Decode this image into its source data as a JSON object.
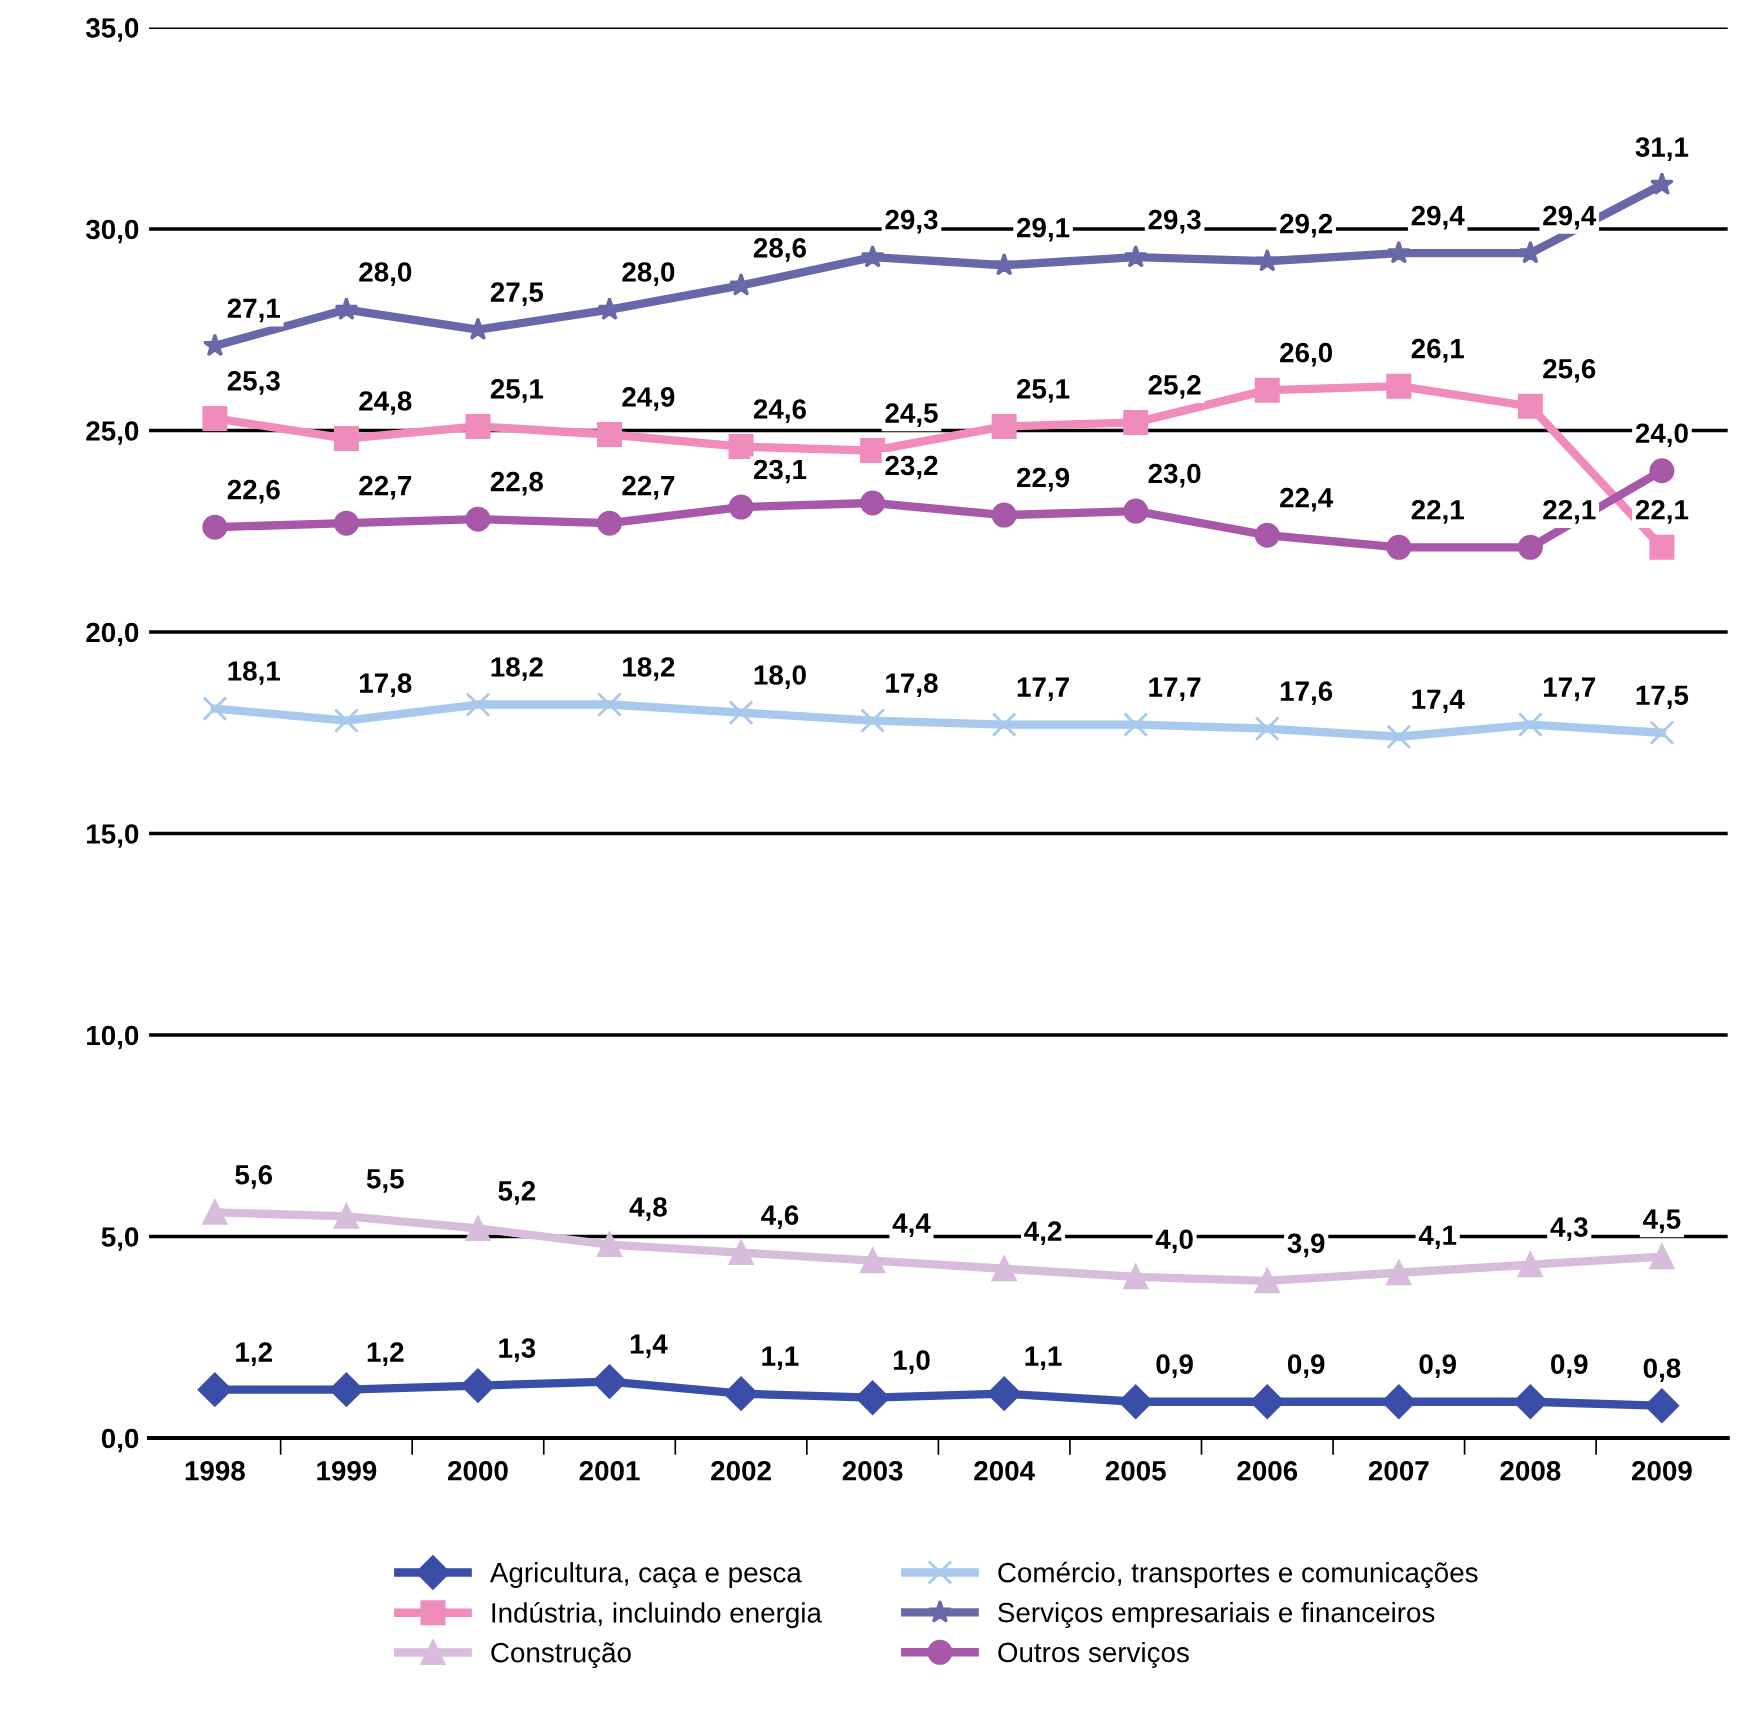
{
  "chart_data": {
    "type": "line",
    "categories": [
      "1998",
      "1999",
      "2000",
      "2001",
      "2002",
      "2003",
      "2004",
      "2005",
      "2006",
      "2007",
      "2008",
      "2009"
    ],
    "ylim": [
      0,
      35
    ],
    "yticks": [
      {
        "value": 0,
        "label": "0,0"
      },
      {
        "value": 5,
        "label": "5,0"
      },
      {
        "value": 10,
        "label": "10,0"
      },
      {
        "value": 15,
        "label": "15,0"
      },
      {
        "value": 20,
        "label": "20,0"
      },
      {
        "value": 25,
        "label": "25,0"
      },
      {
        "value": 30,
        "label": "30,0"
      },
      {
        "value": 35,
        "label": "35,0"
      }
    ],
    "grid": "y",
    "legend": "bottom",
    "series": [
      {
        "name": "Agricultura, caça e pesca",
        "color": "#3a4ea8",
        "marker": "diamond",
        "values": [
          1.2,
          1.2,
          1.3,
          1.4,
          1.1,
          1.0,
          1.1,
          0.9,
          0.9,
          0.9,
          0.9,
          0.8
        ],
        "value_labels": [
          "1,2",
          "1,2",
          "1,3",
          "1,4",
          "1,1",
          "1,0",
          "1,1",
          "0,9",
          "0,9",
          "0,9",
          "0,9",
          "0,8"
        ]
      },
      {
        "name": "Indústria, incluindo energia",
        "color": "#f08cbc",
        "marker": "square",
        "values": [
          25.3,
          24.8,
          25.1,
          24.9,
          24.6,
          24.5,
          25.1,
          25.2,
          26.0,
          26.1,
          25.6,
          22.1
        ],
        "value_labels": [
          "25,3",
          "24,8",
          "25,1",
          "24,9",
          "24,6",
          "24,5",
          "25,1",
          "25,2",
          "26,0",
          "26,1",
          "25,6",
          "22,1"
        ]
      },
      {
        "name": "Construção",
        "color": "#d8bcdc",
        "marker": "triangle",
        "values": [
          5.6,
          5.5,
          5.2,
          4.8,
          4.6,
          4.4,
          4.2,
          4.0,
          3.9,
          4.1,
          4.3,
          4.5
        ],
        "value_labels": [
          "5,6",
          "5,5",
          "5,2",
          "4,8",
          "4,6",
          "4,4",
          "4,2",
          "4,0",
          "3,9",
          "4,1",
          "4,3",
          "4,5"
        ]
      },
      {
        "name": "Comércio, transportes e comunicações",
        "color": "#a8c8ec",
        "marker": "cross",
        "values": [
          18.1,
          17.8,
          18.2,
          18.2,
          18.0,
          17.8,
          17.7,
          17.7,
          17.6,
          17.4,
          17.7,
          17.5
        ],
        "value_labels": [
          "18,1",
          "17,8",
          "18,2",
          "18,2",
          "18,0",
          "17,8",
          "17,7",
          "17,7",
          "17,6",
          "17,4",
          "17,7",
          "17,5"
        ]
      },
      {
        "name": "Serviços empresariais e financeiros",
        "color": "#6868a8",
        "marker": "star",
        "values": [
          27.1,
          28.0,
          27.5,
          28.0,
          28.6,
          29.3,
          29.1,
          29.3,
          29.2,
          29.4,
          29.4,
          31.1
        ],
        "value_labels": [
          "27,1",
          "28,0",
          "27,5",
          "28,0",
          "28,6",
          "29,3",
          "29,1",
          "29,3",
          "29,2",
          "29,4",
          "29,4",
          "31,1"
        ]
      },
      {
        "name": "Outros serviços",
        "color": "#a858a8",
        "marker": "circle",
        "values": [
          22.6,
          22.7,
          22.8,
          22.7,
          23.1,
          23.2,
          22.9,
          23.0,
          22.4,
          22.1,
          22.1,
          24.0
        ],
        "value_labels": [
          "22,6",
          "22,7",
          "22,8",
          "22,7",
          "23,1",
          "23,2",
          "22,9",
          "23,0",
          "22,4",
          "22,1",
          "22,1",
          "24,0"
        ]
      }
    ]
  }
}
